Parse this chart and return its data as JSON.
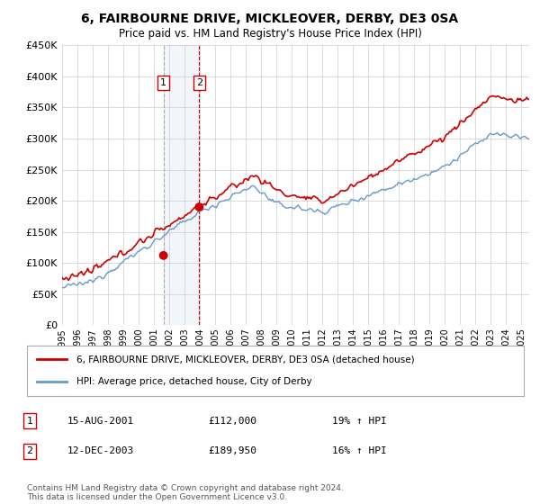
{
  "title": "6, FAIRBOURNE DRIVE, MICKLEOVER, DERBY, DE3 0SA",
  "subtitle": "Price paid vs. HM Land Registry's House Price Index (HPI)",
  "ylim": [
    0,
    450000
  ],
  "xlim_start": 1995.0,
  "xlim_end": 2025.5,
  "legend_line1": "6, FAIRBOURNE DRIVE, MICKLEOVER, DERBY, DE3 0SA (detached house)",
  "legend_line2": "HPI: Average price, detached house, City of Derby",
  "transaction1_label": "1",
  "transaction1_date": "15-AUG-2001",
  "transaction1_price": "£112,000",
  "transaction1_hpi": "19% ↑ HPI",
  "transaction1_year": 2001.62,
  "transaction1_value": 112000,
  "transaction2_label": "2",
  "transaction2_date": "12-DEC-2003",
  "transaction2_price": "£189,950",
  "transaction2_hpi": "16% ↑ HPI",
  "transaction2_year": 2003.95,
  "transaction2_value": 189950,
  "footer": "Contains HM Land Registry data © Crown copyright and database right 2024.\nThis data is licensed under the Open Government Licence v3.0.",
  "line_color_red": "#cc0000",
  "line_color_blue": "#6699cc",
  "background_color": "#ffffff",
  "grid_color": "#cccccc",
  "highlight_fill": "#ccdded"
}
